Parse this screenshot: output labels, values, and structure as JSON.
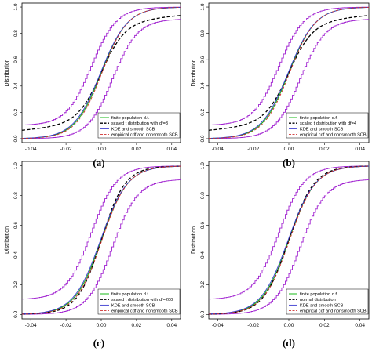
{
  "chart_data": [
    {
      "type": "line",
      "caption": "(a)",
      "ylabel": "Distribution",
      "xlim": [
        -0.045,
        0.045
      ],
      "ylim": [
        -0.03,
        1.03
      ],
      "x_ticks": [
        "-0.04",
        "-0.02",
        "0.00",
        "0.02",
        "0.04"
      ],
      "y_ticks": [
        "0.0",
        "0.2",
        "0.4",
        "0.6",
        "0.8",
        "1.0"
      ],
      "legend_position": "bottom-right",
      "params": {
        "scale": 0.0075,
        "scb_upper_low": 0.1,
        "scb_lower_high": 0.91,
        "tdf": 3
      },
      "series": [
        {
          "name": "finite population d.f.",
          "color": "#00b000",
          "dash": "solid",
          "x": [
            -0.045,
            -0.03,
            -0.02,
            -0.015,
            -0.01,
            -0.005,
            0.0,
            0.005,
            0.01,
            0.015,
            0.02,
            0.03,
            0.045
          ],
          "y": [
            0.0,
            0.0,
            0.01,
            0.04,
            0.11,
            0.26,
            0.5,
            0.74,
            0.89,
            0.96,
            0.99,
            1.0,
            1.0
          ]
        },
        {
          "name": "scaled t distribution with df=3",
          "color": "#000000",
          "dash": "dashed",
          "x": [
            -0.045,
            -0.03,
            -0.02,
            -0.015,
            -0.01,
            -0.005,
            0.0,
            0.005,
            0.01,
            0.015,
            0.02,
            0.03,
            0.045
          ],
          "y": [
            0.01,
            0.02,
            0.04,
            0.06,
            0.11,
            0.24,
            0.5,
            0.76,
            0.89,
            0.94,
            0.96,
            0.98,
            0.99
          ]
        },
        {
          "name": "KDE and smooth SCB",
          "color": "#3a3ad0",
          "dash": "solid",
          "x": [
            -0.045,
            -0.03,
            -0.02,
            -0.015,
            -0.01,
            -0.005,
            0.0,
            0.005,
            0.01,
            0.015,
            0.02,
            0.03,
            0.045
          ],
          "y": [
            0.0,
            0.0,
            0.01,
            0.04,
            0.11,
            0.26,
            0.5,
            0.74,
            0.89,
            0.96,
            0.99,
            1.0,
            1.0
          ]
        },
        {
          "name": "empirical cdf and nonsmooth SCB",
          "color": "#d03030",
          "dash": "dashed",
          "x": [
            -0.045,
            -0.03,
            -0.02,
            -0.015,
            -0.01,
            -0.005,
            0.0,
            0.005,
            0.01,
            0.015,
            0.02,
            0.03,
            0.045
          ],
          "y": [
            0.0,
            0.0,
            0.01,
            0.04,
            0.11,
            0.26,
            0.5,
            0.74,
            0.89,
            0.96,
            0.99,
            1.0,
            1.0
          ]
        }
      ]
    },
    {
      "type": "line",
      "caption": "(b)",
      "ylabel": "Distribution",
      "xlim": [
        -0.045,
        0.045
      ],
      "ylim": [
        -0.03,
        1.03
      ],
      "x_ticks": [
        "-0.04",
        "-0.02",
        "0.00",
        "0.02",
        "0.04"
      ],
      "y_ticks": [
        "0.0",
        "0.2",
        "0.4",
        "0.6",
        "0.8",
        "1.0"
      ],
      "legend_position": "bottom-right",
      "params": {
        "scale": 0.0075,
        "scb_upper_low": 0.1,
        "scb_lower_high": 0.91,
        "tdf": 4
      },
      "series": [
        {
          "name": "finite population d.f.",
          "color": "#00b000",
          "dash": "solid",
          "x": [
            -0.045,
            -0.03,
            -0.02,
            -0.015,
            -0.01,
            -0.005,
            0.0,
            0.005,
            0.01,
            0.015,
            0.02,
            0.03,
            0.045
          ],
          "y": [
            0.0,
            0.0,
            0.01,
            0.04,
            0.11,
            0.26,
            0.5,
            0.74,
            0.89,
            0.96,
            0.99,
            1.0,
            1.0
          ]
        },
        {
          "name": "scaled t distribution with df=4",
          "color": "#000000",
          "dash": "dashed",
          "x": [
            -0.045,
            -0.03,
            -0.02,
            -0.015,
            -0.01,
            -0.005,
            0.0,
            0.005,
            0.01,
            0.015,
            0.02,
            0.03,
            0.045
          ],
          "y": [
            0.0,
            0.01,
            0.03,
            0.05,
            0.11,
            0.25,
            0.5,
            0.75,
            0.89,
            0.95,
            0.97,
            0.99,
            1.0
          ]
        },
        {
          "name": "KDE and smooth SCB",
          "color": "#3a3ad0",
          "dash": "solid",
          "x": [
            -0.045,
            -0.03,
            -0.02,
            -0.015,
            -0.01,
            -0.005,
            0.0,
            0.005,
            0.01,
            0.015,
            0.02,
            0.03,
            0.045
          ],
          "y": [
            0.0,
            0.0,
            0.01,
            0.04,
            0.11,
            0.26,
            0.5,
            0.74,
            0.89,
            0.96,
            0.99,
            1.0,
            1.0
          ]
        },
        {
          "name": "empirical cdf and nonsmooth SCB",
          "color": "#d03030",
          "dash": "dashed",
          "x": [
            -0.045,
            -0.03,
            -0.02,
            -0.015,
            -0.01,
            -0.005,
            0.0,
            0.005,
            0.01,
            0.015,
            0.02,
            0.03,
            0.045
          ],
          "y": [
            0.0,
            0.0,
            0.01,
            0.04,
            0.11,
            0.26,
            0.5,
            0.74,
            0.89,
            0.96,
            0.99,
            1.0,
            1.0
          ]
        }
      ]
    },
    {
      "type": "line",
      "caption": "(c)",
      "ylabel": "Distribution",
      "xlim": [
        -0.045,
        0.045
      ],
      "ylim": [
        -0.03,
        1.03
      ],
      "x_ticks": [
        "-0.04",
        "-0.02",
        "0.00",
        "0.02",
        "0.04"
      ],
      "y_ticks": [
        "0.0",
        "0.2",
        "0.4",
        "0.6",
        "0.8",
        "1.0"
      ],
      "legend_position": "bottom-right",
      "params": {
        "scale": 0.0075,
        "scb_upper_low": 0.1,
        "scb_lower_high": 0.91,
        "tdf": 200
      },
      "series": [
        {
          "name": "finite population d.f.",
          "color": "#00b000",
          "dash": "solid",
          "x": [
            -0.045,
            -0.03,
            -0.02,
            -0.015,
            -0.01,
            -0.005,
            0.0,
            0.005,
            0.01,
            0.015,
            0.02,
            0.03,
            0.045
          ],
          "y": [
            0.0,
            0.0,
            0.01,
            0.04,
            0.11,
            0.26,
            0.5,
            0.74,
            0.89,
            0.96,
            0.99,
            1.0,
            1.0
          ]
        },
        {
          "name": "scaled t distribution with df=200",
          "color": "#000000",
          "dash": "dashed",
          "x": [
            -0.045,
            -0.03,
            -0.02,
            -0.015,
            -0.01,
            -0.005,
            0.0,
            0.005,
            0.01,
            0.015,
            0.02,
            0.03,
            0.045
          ],
          "y": [
            0.0,
            0.0,
            0.01,
            0.04,
            0.11,
            0.26,
            0.5,
            0.74,
            0.89,
            0.96,
            0.99,
            1.0,
            1.0
          ]
        },
        {
          "name": "KDE and smooth SCB",
          "color": "#3a3ad0",
          "dash": "solid",
          "x": [
            -0.045,
            -0.03,
            -0.02,
            -0.015,
            -0.01,
            -0.005,
            0.0,
            0.005,
            0.01,
            0.015,
            0.02,
            0.03,
            0.045
          ],
          "y": [
            0.0,
            0.0,
            0.01,
            0.04,
            0.11,
            0.26,
            0.5,
            0.74,
            0.89,
            0.96,
            0.99,
            1.0,
            1.0
          ]
        },
        {
          "name": "empirical cdf and nonsmooth SCB",
          "color": "#d03030",
          "dash": "dashed",
          "x": [
            -0.045,
            -0.03,
            -0.02,
            -0.015,
            -0.01,
            -0.005,
            0.0,
            0.005,
            0.01,
            0.015,
            0.02,
            0.03,
            0.045
          ],
          "y": [
            0.0,
            0.0,
            0.01,
            0.04,
            0.11,
            0.26,
            0.5,
            0.74,
            0.89,
            0.96,
            0.99,
            1.0,
            1.0
          ]
        }
      ]
    },
    {
      "type": "line",
      "caption": "(d)",
      "ylabel": "Distribution",
      "xlim": [
        -0.045,
        0.045
      ],
      "ylim": [
        -0.03,
        1.03
      ],
      "x_ticks": [
        "-0.04",
        "-0.02",
        "0.00",
        "0.02",
        "0.04"
      ],
      "y_ticks": [
        "0.0",
        "0.2",
        "0.4",
        "0.6",
        "0.8",
        "1.0"
      ],
      "legend_position": "bottom-right",
      "params": {
        "scale": 0.0075,
        "scb_upper_low": 0.1,
        "scb_lower_high": 0.91,
        "tdf": 0
      },
      "series": [
        {
          "name": "finite population d.f.",
          "color": "#00b000",
          "dash": "solid",
          "x": [
            -0.045,
            -0.03,
            -0.02,
            -0.015,
            -0.01,
            -0.005,
            0.0,
            0.005,
            0.01,
            0.015,
            0.02,
            0.03,
            0.045
          ],
          "y": [
            0.0,
            0.0,
            0.01,
            0.04,
            0.11,
            0.26,
            0.5,
            0.74,
            0.89,
            0.96,
            0.99,
            1.0,
            1.0
          ]
        },
        {
          "name": "normal distribution",
          "color": "#000000",
          "dash": "dashed",
          "x": [
            -0.045,
            -0.03,
            -0.02,
            -0.015,
            -0.01,
            -0.005,
            0.0,
            0.005,
            0.01,
            0.015,
            0.02,
            0.03,
            0.045
          ],
          "y": [
            0.0,
            0.0,
            0.01,
            0.04,
            0.11,
            0.26,
            0.5,
            0.74,
            0.89,
            0.96,
            0.99,
            1.0,
            1.0
          ]
        },
        {
          "name": "KDE and smooth SCB",
          "color": "#3a3ad0",
          "dash": "solid",
          "x": [
            -0.045,
            -0.03,
            -0.02,
            -0.015,
            -0.01,
            -0.005,
            0.0,
            0.005,
            0.01,
            0.015,
            0.02,
            0.03,
            0.045
          ],
          "y": [
            0.0,
            0.0,
            0.01,
            0.04,
            0.11,
            0.26,
            0.5,
            0.74,
            0.89,
            0.96,
            0.99,
            1.0,
            1.0
          ]
        },
        {
          "name": "empirical cdf and nonsmooth SCB",
          "color": "#d03030",
          "dash": "dashed",
          "x": [
            -0.045,
            -0.03,
            -0.02,
            -0.015,
            -0.01,
            -0.005,
            0.0,
            0.005,
            0.01,
            0.015,
            0.02,
            0.03,
            0.045
          ],
          "y": [
            0.0,
            0.0,
            0.01,
            0.04,
            0.11,
            0.26,
            0.5,
            0.74,
            0.89,
            0.96,
            0.99,
            1.0,
            1.0
          ]
        }
      ]
    }
  ],
  "colors": {
    "scb_band": "#a020d0",
    "axis": "#000000"
  }
}
